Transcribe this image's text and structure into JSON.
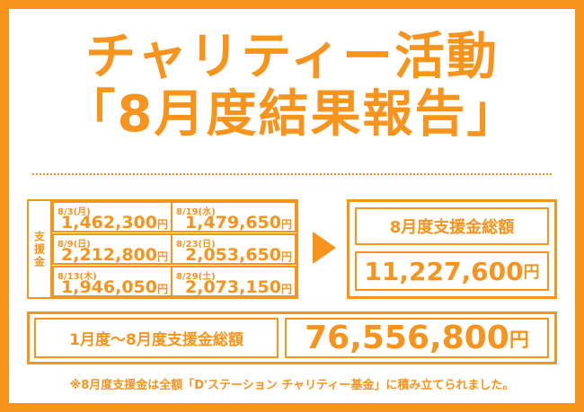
{
  "title": {
    "line1": "チャリティー活動",
    "line2": "「8月度結果報告」"
  },
  "side_label": "支援金",
  "daily": [
    {
      "date": "8/3(月)",
      "amount": "1,462,300",
      "unit": "円"
    },
    {
      "date": "8/19(水)",
      "amount": "1,479,650",
      "unit": "円"
    },
    {
      "date": "8/9(日)",
      "amount": "2,212,800",
      "unit": "円"
    },
    {
      "date": "8/23(日)",
      "amount": "2,053,650",
      "unit": "円"
    },
    {
      "date": "8/13(木)",
      "amount": "1,946,050",
      "unit": "円"
    },
    {
      "date": "8/29(土)",
      "amount": "2,073,150",
      "unit": "円"
    }
  ],
  "monthly_total": {
    "label": "8月度支援金総額",
    "amount": "11,227,600",
    "unit": "円"
  },
  "cumulative_total": {
    "label": "1月度〜8月度支援金総額",
    "amount": "76,556,800",
    "unit": "円"
  },
  "footnote": "※8月度支援金は全額「D'ステーション チャリティー基金」に積み立てられました。",
  "colors": {
    "accent": "#f7941d",
    "background": "#ffffff"
  }
}
